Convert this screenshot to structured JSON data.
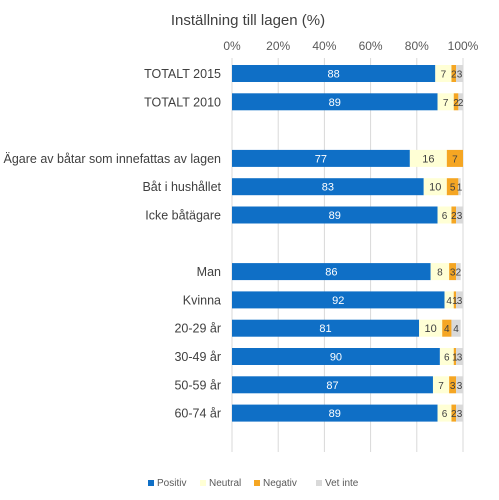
{
  "chart_data": {
    "type": "bar",
    "orientation": "horizontal",
    "stacked": true,
    "title": "Inställning till lagen (%)",
    "xlim": [
      0,
      100
    ],
    "x_ticks": [
      "0%",
      "20%",
      "40%",
      "60%",
      "80%",
      "100%"
    ],
    "grid": true,
    "legend_position": "bottom",
    "categories": [
      "TOTALT 2015",
      "TOTALT 2010",
      "",
      "Ägare av båtar som innefattas av lagen",
      "Båt i hushållet",
      "Icke båtägare",
      "",
      "Man",
      "Kvinna",
      "20-29 år",
      "30-49 år",
      "50-59 år",
      "60-74 år"
    ],
    "series": [
      {
        "name": "Positiv",
        "color": "#0F6FC6",
        "label_color": "#ffffff",
        "values": [
          88,
          89,
          null,
          77,
          83,
          89,
          null,
          86,
          92,
          81,
          90,
          87,
          89
        ]
      },
      {
        "name": "Neutral",
        "color": "#FFFFD5",
        "label_color": "#404040",
        "values": [
          7,
          7,
          null,
          16,
          10,
          6,
          null,
          8,
          4,
          10,
          6,
          7,
          6
        ]
      },
      {
        "name": "Negativ",
        "color": "#F5A623",
        "label_color": "#404040",
        "values": [
          2,
          2,
          null,
          7,
          5,
          2,
          null,
          3,
          1,
          4,
          1,
          3,
          2
        ]
      },
      {
        "name": "Vet inte",
        "color": "#D9D9D9",
        "label_color": "#404040",
        "values": [
          3,
          2,
          null,
          0,
          1,
          3,
          null,
          2,
          3,
          4,
          3,
          3,
          3
        ]
      }
    ]
  }
}
